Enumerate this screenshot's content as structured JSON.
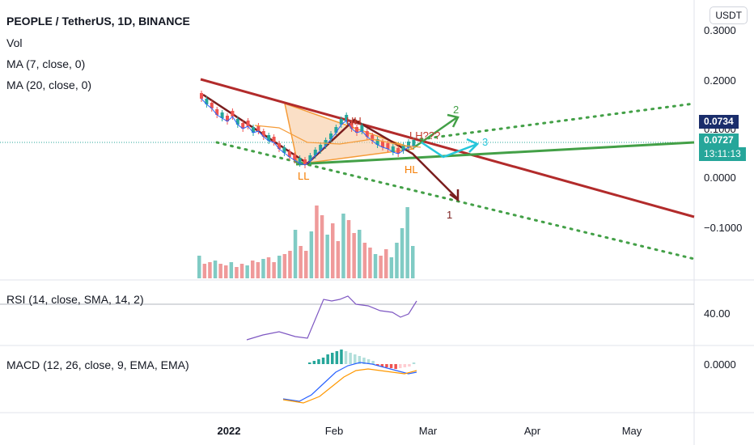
{
  "header": {
    "symbol_title": "PEOPLE / TetherUS, 1D, BINANCE",
    "vol_label": "Vol",
    "ma7_label": "MA (7, close, 0)",
    "ma20_label": "MA (20, close, 0)",
    "rsi_label": "RSI (14, close, SMA, 14, 2)",
    "macd_label": "MACD (12, 26, close, 9, EMA, EMA)",
    "currency_button": "USDT"
  },
  "badges": {
    "price_high": "0.0734",
    "price_last": "0.0727",
    "countdown": "13:11:13",
    "colors": {
      "high": "#1a2d6b",
      "last": "#26a69a"
    }
  },
  "annotations": {
    "hh": "HH",
    "lh": "LH???",
    "ll": "LL",
    "hl": "HL",
    "wave1": "1",
    "wave2": "2",
    "wave3": "3"
  },
  "chart_data": {
    "type": "candlestick",
    "x_tick_labels": [
      "2022",
      "Feb",
      "Mar",
      "Apr",
      "May"
    ],
    "price_axis": {
      "ticks": [
        "0.3000",
        "0.2000",
        "0.1000",
        "0.0000",
        "−0.1000"
      ],
      "last_price": 0.0727,
      "high_marker": 0.0734
    },
    "rsi_axis": {
      "ticks": [
        "40.00"
      ]
    },
    "macd_axis": {
      "ticks": [
        "0.0000"
      ]
    },
    "colors": {
      "up": "#26a69a",
      "down": "#ef5350",
      "trend_down": "#b22b2b",
      "trend_up": "#43a047",
      "dotted": "#43a047",
      "wedge_fill": "#f7c9a0",
      "ma": "#f59b38",
      "rsi": "#7e57c2",
      "macd": "#2962ff",
      "signal": "#ff9800",
      "wave1": "#7b1e1e",
      "wave2": "#43a047",
      "wave3": "#26c6da"
    }
  }
}
